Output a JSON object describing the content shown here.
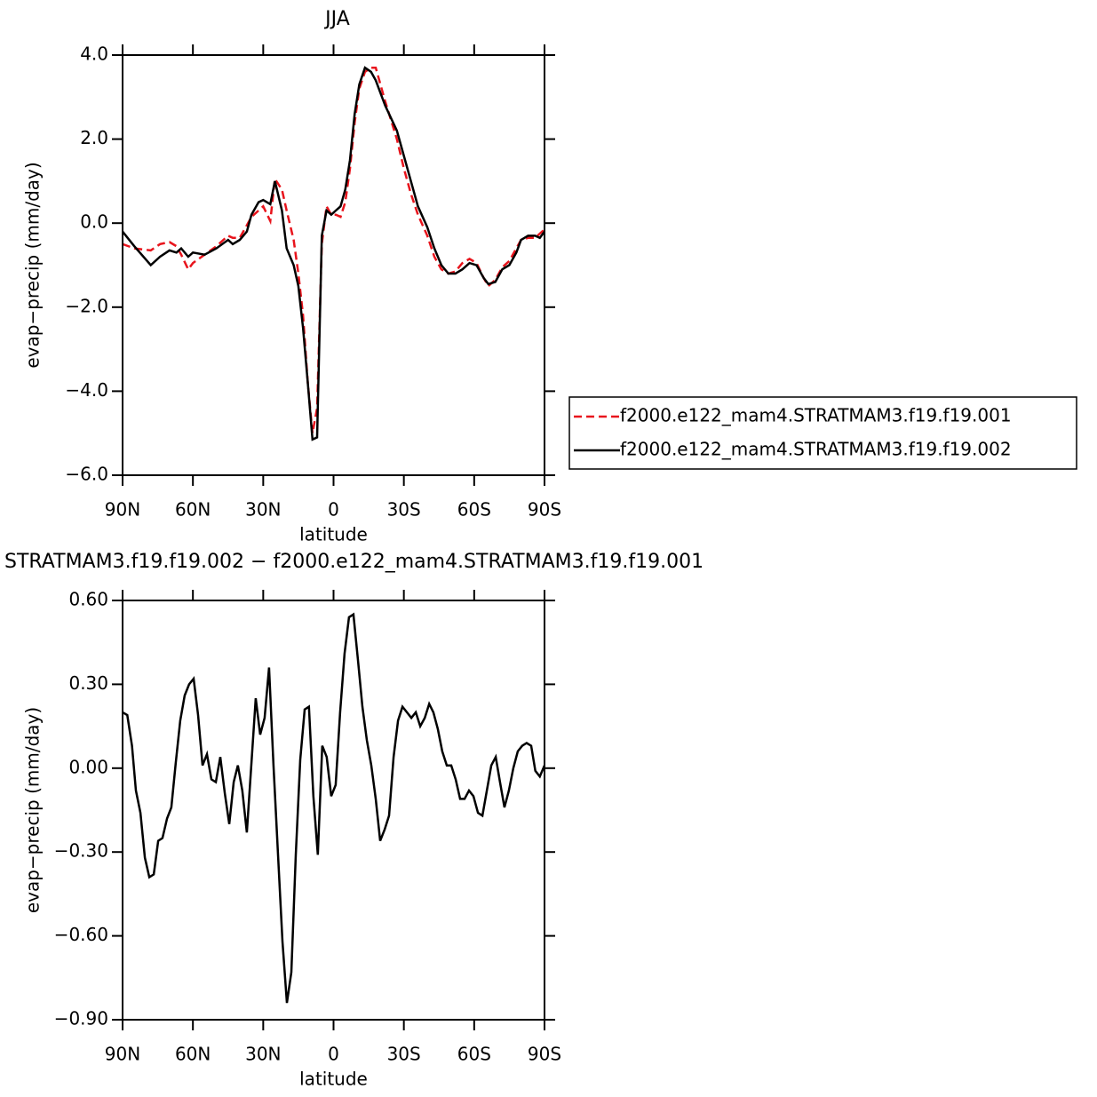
{
  "chart_data": [
    {
      "type": "line",
      "title": "JJA",
      "xlabel": "latitude",
      "ylabel": "evap−precip (mm/day)",
      "x": [
        90,
        85,
        78,
        74,
        70,
        67,
        65,
        62,
        60,
        55,
        50,
        45,
        43,
        40,
        37,
        35,
        32,
        30,
        27,
        25,
        22,
        20,
        17,
        15,
        13,
        11,
        9,
        7,
        5,
        3,
        1,
        -1,
        -3,
        -5,
        -7,
        -9,
        -11,
        -13.4,
        -16,
        -18,
        -22,
        -27,
        -30,
        -33,
        -36,
        -40,
        -43,
        -46,
        -49,
        -52,
        -55,
        -58,
        -61,
        -64,
        -66,
        -69,
        -72,
        -75,
        -78,
        -80,
        -83,
        -86,
        -88,
        -90
      ],
      "series": [
        {
          "name": "f2000.e122_mam4.STRATMAM3.f19.f19.001",
          "color": "#e8141c",
          "line_style": "dashed",
          "values": [
            -0.5,
            -0.6,
            -0.65,
            -0.5,
            -0.45,
            -0.55,
            -0.75,
            -1.1,
            -0.95,
            -0.75,
            -0.55,
            -0.3,
            -0.35,
            -0.35,
            -0.05,
            0.15,
            0.3,
            0.4,
            0.05,
            1.05,
            0.8,
            0.3,
            -0.4,
            -1.2,
            -2.2,
            -3.8,
            -5.0,
            -4.4,
            -0.5,
            0.4,
            0.2,
            0.2,
            0.15,
            0.5,
            1.3,
            2.4,
            3.2,
            3.6,
            3.7,
            3.7,
            2.9,
            2.0,
            1.3,
            0.7,
            0.2,
            -0.3,
            -0.8,
            -1.1,
            -1.2,
            -1.15,
            -0.95,
            -0.85,
            -0.95,
            -1.3,
            -1.5,
            -1.35,
            -1.05,
            -0.9,
            -0.6,
            -0.4,
            -0.35,
            -0.35,
            -0.25,
            -0.15
          ]
        },
        {
          "name": "f2000.e122_mam4.STRATMAM3.f19.f19.002",
          "color": "#000000",
          "line_style": "solid",
          "values": [
            -0.2,
            -0.55,
            -1.0,
            -0.8,
            -0.65,
            -0.7,
            -0.6,
            -0.8,
            -0.7,
            -0.75,
            -0.6,
            -0.4,
            -0.5,
            -0.4,
            -0.2,
            0.2,
            0.5,
            0.55,
            0.45,
            1.0,
            0.3,
            -0.6,
            -1.0,
            -1.5,
            -2.5,
            -3.8,
            -5.15,
            -5.1,
            -0.3,
            0.3,
            0.2,
            0.3,
            0.4,
            0.8,
            1.5,
            2.6,
            3.3,
            3.7,
            3.6,
            3.4,
            2.8,
            2.2,
            1.6,
            1.0,
            0.4,
            -0.1,
            -0.6,
            -1.0,
            -1.2,
            -1.2,
            -1.1,
            -0.95,
            -1.0,
            -1.3,
            -1.45,
            -1.4,
            -1.1,
            -1.0,
            -0.7,
            -0.4,
            -0.3,
            -0.3,
            -0.35,
            -0.2
          ]
        }
      ],
      "xlim": [
        90,
        -90
      ],
      "xticks": [
        {
          "value": 90,
          "label": "90N"
        },
        {
          "value": 60,
          "label": "60N"
        },
        {
          "value": 30,
          "label": "30N"
        },
        0,
        {
          "value": -30,
          "label": "30S"
        },
        {
          "value": -60,
          "label": "60S"
        },
        {
          "value": -90,
          "label": "90S"
        }
      ],
      "ylim": [
        -6,
        4
      ],
      "yticks": [
        {
          "value": 4,
          "label": "4.0"
        },
        {
          "value": 2,
          "label": "2.0"
        },
        {
          "value": 0,
          "label": "0.0"
        },
        {
          "value": -2,
          "label": "−2.0"
        },
        {
          "value": -4,
          "label": "−4.0"
        },
        {
          "value": -6,
          "label": "−6.0"
        }
      ],
      "legend": "right"
    },
    {
      "type": "line",
      "title": "STRATMAM3.f19.f19.002 − f2000.e122_mam4.STRATMAM3.f19.f19.001",
      "xlabel": "latitude",
      "ylabel": "evap−precip (mm/day)",
      "x": [
        90,
        88,
        86,
        84.3,
        82.4,
        80.5,
        78.6,
        76.7,
        74.8,
        73,
        71,
        69.2,
        67.3,
        65.4,
        63.5,
        61.6,
        59.7,
        57.8,
        55.9,
        54,
        52.1,
        50.2,
        48.3,
        46.4,
        44.5,
        42.6,
        40.8,
        38.9,
        37,
        35.1,
        33.2,
        31.3,
        29.4,
        27.5,
        25.6,
        23.7,
        21.8,
        19.9,
        18,
        16.1,
        14.2,
        12.3,
        10.5,
        8.6,
        6.7,
        4.8,
        2.9,
        1,
        -0.9,
        -2.8,
        -4.7,
        -6.6,
        -8.5,
        -10.4,
        -12.3,
        -14.2,
        -16.1,
        -18,
        -19.9,
        -21.8,
        -23.7,
        -25.6,
        -27.5,
        -29.4,
        -31.3,
        -33.2,
        -35.1,
        -37,
        -38.9,
        -40.8,
        -42.6,
        -44.5,
        -46.4,
        -48.3,
        -50.2,
        -52.1,
        -54,
        -55.9,
        -57.8,
        -59.7,
        -61.6,
        -63.5,
        -65.4,
        -67.3,
        -69.2,
        -71,
        -72.9,
        -74.8,
        -76.7,
        -78.6,
        -80.5,
        -82.4,
        -84.3,
        -86.1,
        -88,
        -90
      ],
      "values": [
        0.2,
        0.19,
        0.08,
        -0.08,
        -0.16,
        -0.32,
        -0.39,
        -0.38,
        -0.26,
        -0.25,
        -0.18,
        -0.14,
        0.02,
        0.17,
        0.26,
        0.3,
        0.32,
        0.19,
        0.01,
        0.05,
        -0.04,
        -0.05,
        0.04,
        -0.09,
        -0.2,
        -0.05,
        0.01,
        -0.08,
        -0.23,
        0.01,
        0.25,
        0.12,
        0.18,
        0.36,
        0.01,
        -0.31,
        -0.62,
        -0.84,
        -0.73,
        -0.31,
        0.03,
        0.21,
        0.22,
        -0.1,
        -0.31,
        0.08,
        0.04,
        -0.1,
        -0.06,
        0.2,
        0.41,
        0.54,
        0.55,
        0.39,
        0.22,
        0.1,
        0.01,
        -0.11,
        -0.26,
        -0.22,
        -0.17,
        0.04,
        0.17,
        0.22,
        0.2,
        0.18,
        0.2,
        0.15,
        0.18,
        0.23,
        0.2,
        0.14,
        0.06,
        0.01,
        0.01,
        -0.04,
        -0.11,
        -0.11,
        -0.08,
        -0.1,
        -0.16,
        -0.17,
        -0.08,
        0.01,
        0.04,
        -0.05,
        -0.14,
        -0.08,
        0.0,
        0.06,
        0.08,
        0.09,
        0.08,
        -0.01,
        -0.03,
        0.01
      ],
      "color": "#000000",
      "xlim": [
        90,
        -90
      ],
      "xticks": [
        {
          "value": 90,
          "label": "90N"
        },
        {
          "value": 60,
          "label": "60N"
        },
        {
          "value": 30,
          "label": "30N"
        },
        0,
        {
          "value": -30,
          "label": "30S"
        },
        {
          "value": -60,
          "label": "60S"
        },
        {
          "value": -90,
          "label": "90S"
        }
      ],
      "ylim": [
        -0.9,
        0.6
      ],
      "yticks": [
        {
          "value": 0.6,
          "label": "0.60"
        },
        {
          "value": 0.3,
          "label": "0.30"
        },
        {
          "value": 0,
          "label": "0.00"
        },
        {
          "value": -0.3,
          "label": "−0.30"
        },
        {
          "value": -0.6,
          "label": "−0.60"
        },
        {
          "value": -0.9,
          "label": "−0.90"
        }
      ]
    }
  ]
}
